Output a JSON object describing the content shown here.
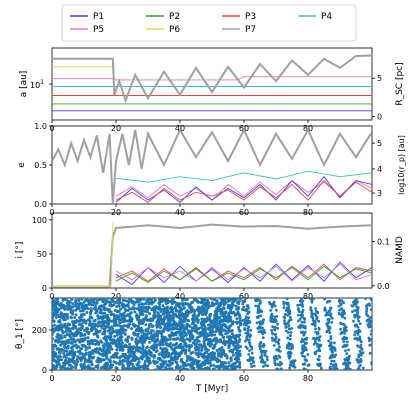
{
  "figure": {
    "legend_entries": [
      {
        "label": "P1",
        "color": "#3b3bff"
      },
      {
        "label": "P2",
        "color": "#2ca02c"
      },
      {
        "label": "P3",
        "color": "#e8473e"
      },
      {
        "label": "P4",
        "color": "#36c3c0"
      },
      {
        "label": "P5",
        "color": "#e377c2"
      },
      {
        "label": "P6",
        "color": "#dddd55"
      },
      {
        "label": "P7",
        "color": "#a0a0a0"
      }
    ]
  },
  "chart_data": [
    {
      "type": "line",
      "panel": "a",
      "xlabel": "",
      "ylabel": "a [au]",
      "ylabel_right": "R_SC [pc]",
      "xlim": [
        0,
        100
      ],
      "x_ticks": [
        "0",
        "20",
        "40",
        "60",
        "80"
      ],
      "ytick_left_label": "10^1",
      "y_right_ticks": [
        "0",
        "5"
      ],
      "yscale": "log",
      "ylim": [
        1,
        100
      ],
      "series": [
        {
          "label": "P1",
          "x": [
            0,
            100
          ],
          "y": [
            1.8,
            1.8
          ]
        },
        {
          "label": "P2",
          "x": [
            0,
            100
          ],
          "y": [
            2.8,
            2.8
          ]
        },
        {
          "label": "P3",
          "x": [
            0,
            100
          ],
          "y": [
            4.8,
            4.8
          ]
        },
        {
          "label": "P4",
          "x": [
            0,
            100
          ],
          "y": [
            8.5,
            8.5
          ]
        },
        {
          "label": "P5",
          "x": [
            0,
            19.5,
            20,
            58,
            60,
            100
          ],
          "y": [
            14,
            14,
            13,
            13,
            16,
            16
          ]
        },
        {
          "label": "P6",
          "x": [
            0,
            19.5
          ],
          "y": [
            30,
            30
          ]
        },
        {
          "label": "P7",
          "x": [
            0,
            19,
            19.5,
            21,
            23,
            26,
            30,
            35,
            40,
            45,
            50,
            55,
            60,
            65,
            70,
            75,
            80,
            85,
            90,
            95,
            100
          ],
          "y": [
            50,
            50,
            5,
            12,
            3.5,
            18,
            4,
            22,
            5,
            28,
            6,
            30,
            8,
            36,
            12,
            45,
            18,
            50,
            28,
            60,
            62
          ]
        }
      ]
    },
    {
      "type": "line",
      "panel": "e",
      "xlabel": "",
      "ylabel": "e",
      "ylabel_right": "log10(r_p) [au]",
      "xlim": [
        0,
        100
      ],
      "ylim": [
        0,
        1.0
      ],
      "x_ticks": [
        "0",
        "20",
        "40",
        "60",
        "80"
      ],
      "y_ticks": [
        "0.0",
        "0.5",
        "1.0"
      ],
      "y_right_ticks": [
        "3",
        "4",
        "5"
      ],
      "series": [
        {
          "label": "P7",
          "x": [
            0,
            2,
            4,
            6,
            8,
            10,
            12,
            14,
            16,
            18,
            19,
            20,
            22,
            24,
            26,
            28,
            30,
            35,
            40,
            45,
            50,
            55,
            60,
            65,
            70,
            75,
            80,
            85,
            90,
            95,
            100
          ],
          "y": [
            0.55,
            0.7,
            0.5,
            0.78,
            0.55,
            0.82,
            0.6,
            0.88,
            0.4,
            0.9,
            0.0,
            0.55,
            0.9,
            0.5,
            0.95,
            0.45,
            0.9,
            0.5,
            0.95,
            0.6,
            0.92,
            0.55,
            0.95,
            0.5,
            0.9,
            0.58,
            0.95,
            0.5,
            0.9,
            0.6,
            0.92
          ]
        },
        {
          "label": "P4",
          "x": [
            20,
            30,
            40,
            50,
            60,
            70,
            80,
            90,
            100
          ],
          "y": [
            0.33,
            0.28,
            0.35,
            0.3,
            0.4,
            0.32,
            0.42,
            0.35,
            0.4
          ]
        },
        {
          "label": "P5",
          "x": [
            20,
            25,
            30,
            35,
            40,
            45,
            50,
            55,
            60,
            65,
            70,
            75,
            80,
            85,
            90,
            95,
            100
          ],
          "y": [
            0.1,
            0.22,
            0.08,
            0.25,
            0.1,
            0.2,
            0.05,
            0.25,
            0.1,
            0.28,
            0.12,
            0.3,
            0.15,
            0.28,
            0.1,
            0.3,
            0.2
          ]
        },
        {
          "label": "P1",
          "x": [
            20,
            25,
            30,
            35,
            40,
            45,
            50,
            55,
            60,
            65,
            70,
            75,
            80,
            85,
            90,
            95,
            100
          ],
          "y": [
            0.02,
            0.2,
            0.05,
            0.18,
            0.02,
            0.22,
            0.05,
            0.2,
            0.08,
            0.25,
            0.05,
            0.3,
            0.1,
            0.35,
            0.08,
            0.3,
            0.25
          ]
        },
        {
          "label": "P3",
          "x": [
            20,
            25,
            30,
            35,
            40,
            45,
            50,
            55,
            60,
            65,
            70,
            75,
            80,
            85,
            90,
            95,
            100
          ],
          "y": [
            0.05,
            0.15,
            0.02,
            0.2,
            0.05,
            0.15,
            0.1,
            0.18,
            0.05,
            0.22,
            0.08,
            0.25,
            0.05,
            0.3,
            0.1,
            0.28,
            0.15
          ]
        }
      ]
    },
    {
      "type": "line",
      "panel": "i",
      "xlabel": "",
      "ylabel": "i [°]",
      "ylabel_right": "NAMD",
      "xlim": [
        0,
        100
      ],
      "ylim": [
        0,
        110
      ],
      "x_ticks": [
        "0",
        "20",
        "40",
        "60",
        "80"
      ],
      "y_ticks": [
        "0",
        "50",
        "100"
      ],
      "y_right_ticks": [
        "0.0",
        "0.1"
      ],
      "series": [
        {
          "label": "P7",
          "x": [
            0,
            18,
            19,
            20,
            30,
            40,
            50,
            60,
            70,
            80,
            90,
            100
          ],
          "y": [
            2,
            2,
            75,
            88,
            92,
            88,
            93,
            90,
            91,
            87,
            90,
            92
          ]
        },
        {
          "label": "P6",
          "x": [
            0,
            18.5,
            19
          ],
          "y": [
            2,
            2,
            96
          ]
        },
        {
          "label": "P1",
          "x": [
            20,
            25,
            30,
            35,
            40,
            45,
            50,
            55,
            60,
            65,
            70,
            75,
            80,
            85,
            90,
            95,
            100
          ],
          "y": [
            20,
            5,
            30,
            8,
            32,
            10,
            28,
            8,
            30,
            10,
            35,
            12,
            33,
            10,
            38,
            15,
            30
          ]
        },
        {
          "label": "P3",
          "x": [
            20,
            25,
            30,
            35,
            40,
            45,
            50,
            55,
            60,
            65,
            70,
            75,
            80,
            85,
            90,
            95,
            100
          ],
          "y": [
            15,
            25,
            10,
            28,
            12,
            30,
            10,
            25,
            15,
            30,
            12,
            32,
            15,
            35,
            12,
            30,
            25
          ]
        },
        {
          "label": "P5",
          "x": [
            20,
            25,
            30,
            35,
            40,
            45,
            50,
            55,
            60,
            65,
            70,
            75,
            80,
            85,
            90,
            95,
            100
          ],
          "y": [
            25,
            12,
            30,
            15,
            25,
            10,
            30,
            12,
            28,
            15,
            32,
            10,
            30,
            15,
            35,
            12,
            20
          ]
        },
        {
          "label": "P2",
          "x": [
            20,
            25,
            30,
            35,
            40,
            45,
            50,
            55,
            60,
            65,
            70,
            75,
            80,
            85,
            90,
            95,
            100
          ],
          "y": [
            10,
            22,
            8,
            25,
            12,
            28,
            10,
            22,
            12,
            28,
            15,
            30,
            12,
            32,
            15,
            28,
            22
          ]
        }
      ]
    },
    {
      "type": "scatter",
      "panel": "theta",
      "xlabel": "T [Myr]",
      "ylabel": "θ_1 [°]",
      "xlim": [
        0,
        100
      ],
      "ylim": [
        0,
        360
      ],
      "x_ticks": [
        "0",
        "20",
        "40",
        "60",
        "80"
      ],
      "y_ticks": [
        "0",
        "200"
      ],
      "x_range": [
        0,
        100
      ],
      "y_range": [
        0,
        360
      ],
      "dense_fill_until": 59,
      "band_start": 59,
      "band_period": 4.3,
      "band_slope": -0.11
    }
  ]
}
